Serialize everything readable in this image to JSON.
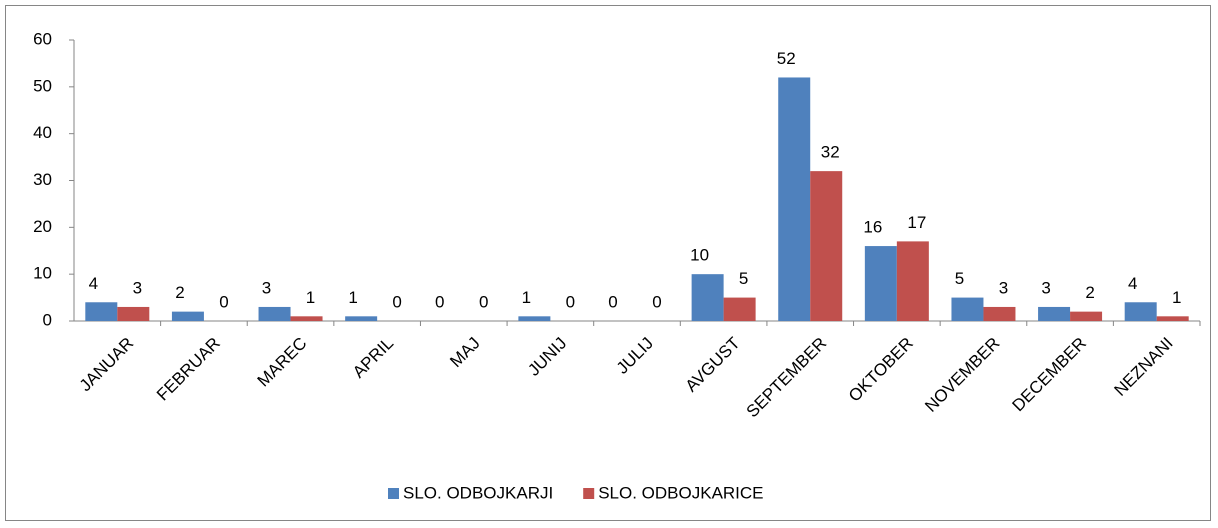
{
  "chart_data": {
    "type": "bar",
    "categories": [
      "JANUAR",
      "FEBRUAR",
      "MAREC",
      "APRIL",
      "MAJ",
      "JUNIJ",
      "JULIJ",
      "AVGUST",
      "SEPTEMBER",
      "OKTOBER",
      "NOVEMBER",
      "DECEMBER",
      "NEZNANI"
    ],
    "series": [
      {
        "name": "SLO. ODBOJKARJI",
        "color": "#4f81bd",
        "values": [
          4,
          2,
          3,
          1,
          0,
          1,
          0,
          10,
          52,
          16,
          5,
          3,
          4
        ]
      },
      {
        "name": "SLO. ODBOJKARICE",
        "color": "#c0504d",
        "values": [
          3,
          0,
          1,
          0,
          0,
          0,
          0,
          5,
          32,
          17,
          3,
          2,
          1
        ]
      }
    ],
    "ylim": [
      0,
      60
    ],
    "yticks": [
      0,
      10,
      20,
      30,
      40,
      50,
      60
    ],
    "grid": false,
    "legend": "bottom"
  }
}
